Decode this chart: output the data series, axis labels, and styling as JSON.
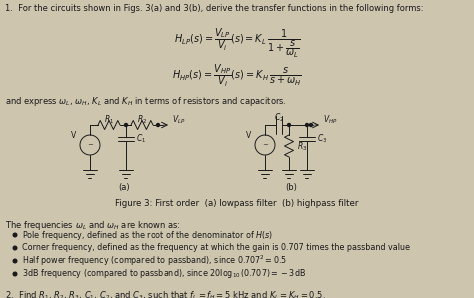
{
  "bg_color": "#cec5ae",
  "text_color": "#1a1a1a",
  "title_line": "1.  For the circuits shown in Figs. 3(a) and 3(b), derive the transfer functions in the following forms:",
  "eq1": "$H_{LP}(s) = \\dfrac{V_{LP}}{V_i}(s) = K_L\\, \\dfrac{1}{1+\\dfrac{s}{\\omega_L}}$",
  "eq2": "$H_{HP}(s) = \\dfrac{V_{HP}}{V_i}(s) = K_H\\, \\dfrac{s}{s+\\omega_H}$",
  "express_line": "and express $\\omega_L$, $\\omega_H$, $K_L$ and $K_H$ in terms of resistors and capacitors.",
  "fig_caption": "Figure 3: First order  (a) lowpass filter  (b) highpass filter",
  "freq_intro": "The frequencies $\\omega_L$ and $\\omega_H$ are known as:",
  "bullet1": "Pole frequency, defined as the root of the denominator of $H(s)$",
  "bullet2": "Corner frequency, defined as the frequency at which the gain is 0.707 times the passband value",
  "bullet3": "Half power frequency (compared to passband), since $0.707^2 = 0.5$",
  "bullet4": "3dB frequency (compared to passband), since $20\\log_{10}(0.707) = -3$dB",
  "q2": "2.  Find $R_1$, $R_2$, $R_3$, $C_1$, $C_2$, and $C_3$, such that $f_L = f_H = 5$ kHz and $K_L = K_H = 0.5$."
}
